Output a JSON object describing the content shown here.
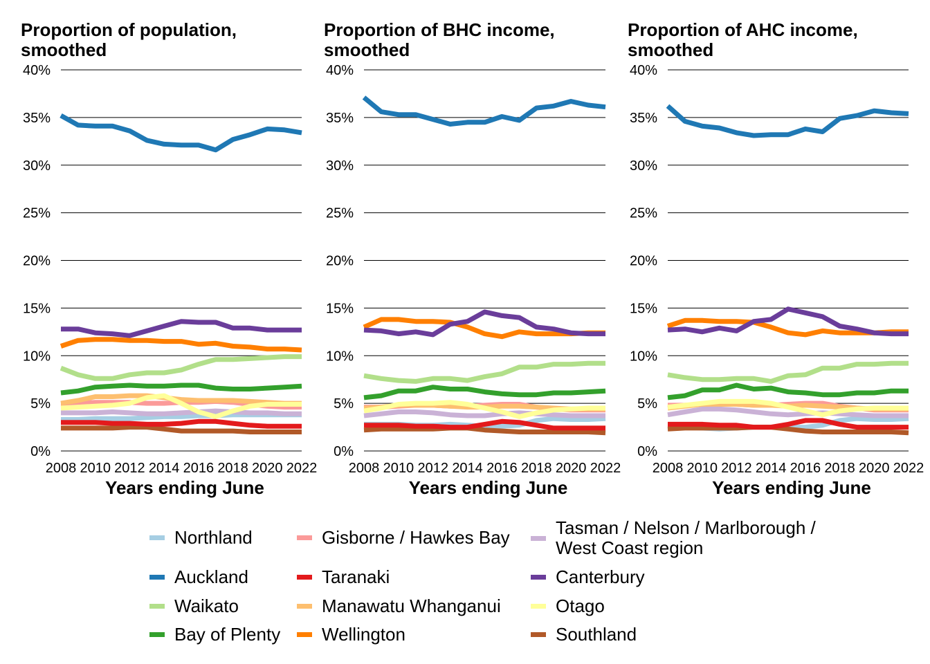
{
  "chart_data": [
    {
      "type": "line",
      "title": "Proportion of population,\nsmoothed",
      "xlabel": "Years ending June",
      "ylabel": "",
      "ylim": [
        0,
        40
      ],
      "y_ticks": [
        "0%",
        "5%",
        "10%",
        "15%",
        "20%",
        "25%",
        "30%",
        "35%",
        "40%"
      ],
      "x_ticks": [
        "2008",
        "2010",
        "2012",
        "2014",
        "2016",
        "2018",
        "2020",
        "2022"
      ],
      "x": [
        2008,
        2009,
        2010,
        2011,
        2012,
        2013,
        2014,
        2015,
        2016,
        2017,
        2018,
        2019,
        2020,
        2021,
        2022
      ],
      "series": [
        {
          "name": "Northland",
          "values": [
            3.3,
            3.3,
            3.4,
            3.4,
            3.4,
            3.5,
            3.6,
            3.6,
            3.7,
            3.7,
            3.8,
            3.8,
            3.8,
            3.8,
            3.8
          ]
        },
        {
          "name": "Auckland",
          "values": [
            35.2,
            34.2,
            34.1,
            34.1,
            33.6,
            32.6,
            32.2,
            32.1,
            32.1,
            31.6,
            32.7,
            33.2,
            33.8,
            33.7,
            33.4
          ]
        },
        {
          "name": "Waikato",
          "values": [
            8.7,
            8.0,
            7.6,
            7.6,
            8.0,
            8.2,
            8.2,
            8.5,
            9.1,
            9.6,
            9.6,
            9.7,
            9.8,
            9.9,
            9.9
          ]
        },
        {
          "name": "Bay of Plenty",
          "values": [
            6.1,
            6.3,
            6.7,
            6.8,
            6.9,
            6.8,
            6.8,
            6.9,
            6.9,
            6.6,
            6.5,
            6.5,
            6.6,
            6.7,
            6.8
          ]
        },
        {
          "name": "Gisborne / Hawkes Bay",
          "values": [
            5.0,
            5.0,
            5.1,
            5.1,
            5.1,
            5.0,
            5.0,
            5.1,
            5.1,
            5.2,
            5.1,
            4.9,
            4.7,
            4.6,
            4.6
          ]
        },
        {
          "name": "Taranaki",
          "values": [
            3.0,
            3.0,
            3.0,
            2.9,
            2.9,
            2.8,
            2.8,
            2.9,
            3.1,
            3.1,
            2.9,
            2.7,
            2.6,
            2.6,
            2.6
          ]
        },
        {
          "name": "Manawatu Whanganui",
          "values": [
            5.0,
            5.3,
            5.7,
            5.7,
            5.8,
            5.8,
            5.6,
            5.4,
            5.3,
            5.3,
            5.3,
            5.2,
            5.1,
            5.0,
            5.0
          ]
        },
        {
          "name": "Wellington",
          "values": [
            11.0,
            11.6,
            11.7,
            11.7,
            11.6,
            11.6,
            11.5,
            11.5,
            11.2,
            11.3,
            11.0,
            10.9,
            10.7,
            10.7,
            10.6
          ]
        },
        {
          "name": "Tasman / Nelson / Marlborough /\nWest Coast region",
          "values": [
            4.0,
            4.0,
            4.0,
            4.1,
            4.0,
            3.9,
            3.9,
            4.0,
            4.1,
            4.2,
            4.1,
            4.0,
            4.0,
            3.9,
            3.9
          ]
        },
        {
          "name": "Canterbury",
          "values": [
            12.8,
            12.8,
            12.4,
            12.3,
            12.1,
            12.6,
            13.1,
            13.6,
            13.5,
            13.5,
            12.9,
            12.9,
            12.7,
            12.7,
            12.7
          ]
        },
        {
          "name": "Otago",
          "values": [
            4.5,
            4.6,
            4.7,
            4.8,
            5.0,
            5.6,
            5.8,
            5.0,
            4.1,
            3.6,
            4.2,
            4.7,
            4.9,
            4.9,
            4.9
          ]
        },
        {
          "name": "Southland",
          "values": [
            2.4,
            2.4,
            2.4,
            2.4,
            2.5,
            2.5,
            2.3,
            2.1,
            2.1,
            2.1,
            2.1,
            2.0,
            2.0,
            2.0,
            2.0
          ]
        }
      ]
    },
    {
      "type": "line",
      "title": "Proportion of BHC income,\nsmoothed",
      "xlabel": "Years ending June",
      "ylabel": "",
      "ylim": [
        0,
        40
      ],
      "y_ticks": [
        "0%",
        "5%",
        "10%",
        "15%",
        "20%",
        "25%",
        "30%",
        "35%",
        "40%"
      ],
      "x_ticks": [
        "2008",
        "2010",
        "2012",
        "2014",
        "2016",
        "2018",
        "2020",
        "2022"
      ],
      "x": [
        2008,
        2009,
        2010,
        2011,
        2012,
        2013,
        2014,
        2015,
        2016,
        2017,
        2018,
        2019,
        2020,
        2021,
        2022
      ],
      "series": [
        {
          "name": "Northland",
          "values": [
            2.8,
            2.8,
            2.8,
            2.7,
            2.7,
            2.8,
            2.7,
            2.6,
            2.6,
            2.7,
            3.2,
            3.4,
            3.3,
            3.3,
            3.4
          ]
        },
        {
          "name": "Auckland",
          "values": [
            37.1,
            35.6,
            35.3,
            35.3,
            34.8,
            34.3,
            34.5,
            34.5,
            35.1,
            34.7,
            36.0,
            36.2,
            36.7,
            36.3,
            36.1
          ]
        },
        {
          "name": "Waikato",
          "values": [
            7.9,
            7.6,
            7.4,
            7.3,
            7.6,
            7.6,
            7.4,
            7.8,
            8.1,
            8.8,
            8.8,
            9.1,
            9.1,
            9.2,
            9.2
          ]
        },
        {
          "name": "Bay of Plenty",
          "values": [
            5.6,
            5.8,
            6.3,
            6.3,
            6.7,
            6.5,
            6.5,
            6.2,
            6.0,
            5.9,
            5.9,
            6.1,
            6.1,
            6.2,
            6.3
          ]
        },
        {
          "name": "Gisborne / Hawkes Bay",
          "values": [
            4.6,
            4.6,
            4.7,
            4.8,
            4.8,
            4.7,
            4.7,
            4.8,
            4.9,
            4.9,
            4.6,
            4.4,
            4.3,
            4.3,
            4.3
          ]
        },
        {
          "name": "Taranaki",
          "values": [
            2.7,
            2.7,
            2.7,
            2.6,
            2.6,
            2.5,
            2.5,
            2.8,
            3.1,
            3.0,
            2.7,
            2.4,
            2.4,
            2.4,
            2.4
          ]
        },
        {
          "name": "Manawatu Whanganui",
          "values": [
            4.5,
            4.6,
            4.8,
            4.8,
            4.8,
            4.7,
            4.6,
            4.6,
            4.7,
            4.7,
            4.6,
            4.5,
            4.4,
            4.4,
            4.4
          ]
        },
        {
          "name": "Wellington",
          "values": [
            13.0,
            13.8,
            13.8,
            13.6,
            13.6,
            13.5,
            13.0,
            12.3,
            12.0,
            12.5,
            12.3,
            12.3,
            12.3,
            12.4,
            12.4
          ]
        },
        {
          "name": "Tasman / Nelson / Marlborough /\nWest Coast region",
          "values": [
            3.7,
            3.9,
            4.1,
            4.1,
            4.0,
            3.8,
            3.7,
            3.7,
            3.9,
            4.0,
            3.9,
            3.8,
            3.7,
            3.7,
            3.7
          ]
        },
        {
          "name": "Canterbury",
          "values": [
            12.7,
            12.6,
            12.3,
            12.5,
            12.2,
            13.3,
            13.6,
            14.6,
            14.2,
            14.0,
            13.0,
            12.8,
            12.4,
            12.3,
            12.3
          ]
        },
        {
          "name": "Otago",
          "values": [
            4.2,
            4.5,
            4.9,
            5.0,
            5.0,
            5.1,
            4.9,
            4.5,
            4.1,
            3.6,
            4.0,
            4.3,
            4.4,
            4.5,
            4.5
          ]
        },
        {
          "name": "Southland",
          "values": [
            2.2,
            2.3,
            2.3,
            2.3,
            2.3,
            2.4,
            2.4,
            2.2,
            2.1,
            2.0,
            2.0,
            2.0,
            2.0,
            2.0,
            1.9
          ]
        }
      ]
    },
    {
      "type": "line",
      "title": "Proportion of AHC income,\nsmoothed",
      "xlabel": "Years ending June",
      "ylabel": "",
      "ylim": [
        0,
        40
      ],
      "y_ticks": [
        "0%",
        "5%",
        "10%",
        "15%",
        "20%",
        "25%",
        "30%",
        "35%",
        "40%"
      ],
      "x_ticks": [
        "2008",
        "2010",
        "2012",
        "2014",
        "2016",
        "2018",
        "2020",
        "2022"
      ],
      "x": [
        2008,
        2009,
        2010,
        2011,
        2012,
        2013,
        2014,
        2015,
        2016,
        2017,
        2018,
        2019,
        2020,
        2021,
        2022
      ],
      "series": [
        {
          "name": "Northland",
          "values": [
            2.6,
            2.5,
            2.4,
            2.3,
            2.4,
            2.5,
            2.5,
            2.5,
            2.5,
            2.7,
            3.2,
            3.4,
            3.3,
            3.3,
            3.4
          ]
        },
        {
          "name": "Auckland",
          "values": [
            36.2,
            34.6,
            34.1,
            33.9,
            33.4,
            33.1,
            33.2,
            33.2,
            33.8,
            33.5,
            34.9,
            35.2,
            35.7,
            35.5,
            35.4
          ]
        },
        {
          "name": "Waikato",
          "values": [
            8.0,
            7.7,
            7.5,
            7.5,
            7.6,
            7.6,
            7.3,
            7.9,
            8.0,
            8.7,
            8.7,
            9.1,
            9.1,
            9.2,
            9.2
          ]
        },
        {
          "name": "Bay of Plenty",
          "values": [
            5.6,
            5.8,
            6.4,
            6.4,
            6.9,
            6.5,
            6.6,
            6.2,
            6.1,
            5.9,
            5.9,
            6.1,
            6.1,
            6.3,
            6.3
          ]
        },
        {
          "name": "Gisborne / Hawkes Bay",
          "values": [
            4.8,
            4.8,
            4.9,
            4.9,
            4.9,
            4.8,
            4.8,
            4.9,
            5.0,
            5.0,
            4.7,
            4.5,
            4.3,
            4.3,
            4.3
          ]
        },
        {
          "name": "Taranaki",
          "values": [
            2.8,
            2.8,
            2.8,
            2.7,
            2.7,
            2.5,
            2.5,
            2.8,
            3.2,
            3.2,
            2.8,
            2.5,
            2.5,
            2.5,
            2.5
          ]
        },
        {
          "name": "Manawatu Whanganui",
          "values": [
            4.5,
            4.7,
            4.9,
            4.9,
            4.9,
            4.8,
            4.8,
            4.7,
            4.8,
            4.7,
            4.6,
            4.5,
            4.4,
            4.4,
            4.4
          ]
        },
        {
          "name": "Wellington",
          "values": [
            13.1,
            13.7,
            13.7,
            13.6,
            13.6,
            13.5,
            13.0,
            12.4,
            12.2,
            12.6,
            12.4,
            12.4,
            12.4,
            12.5,
            12.5
          ]
        },
        {
          "name": "Tasman / Nelson / Marlborough /\nWest Coast region",
          "values": [
            3.8,
            4.1,
            4.4,
            4.4,
            4.3,
            4.1,
            3.9,
            3.8,
            3.9,
            4.0,
            3.9,
            3.8,
            3.7,
            3.7,
            3.7
          ]
        },
        {
          "name": "Canterbury",
          "values": [
            12.7,
            12.8,
            12.5,
            12.9,
            12.6,
            13.6,
            13.8,
            14.9,
            14.5,
            14.1,
            13.1,
            12.8,
            12.4,
            12.3,
            12.3
          ]
        },
        {
          "name": "Otago",
          "values": [
            4.6,
            4.8,
            5.0,
            5.2,
            5.2,
            5.2,
            5.0,
            4.6,
            4.2,
            3.8,
            4.2,
            4.4,
            4.5,
            4.5,
            4.5
          ]
        },
        {
          "name": "Southland",
          "values": [
            2.3,
            2.4,
            2.4,
            2.4,
            2.4,
            2.5,
            2.5,
            2.3,
            2.1,
            2.0,
            2.0,
            2.0,
            2.0,
            2.0,
            1.9
          ]
        }
      ]
    }
  ],
  "legend": {
    "items": [
      {
        "label": "Northland",
        "color": "#a6cee3"
      },
      {
        "label": "Auckland",
        "color": "#1f78b4"
      },
      {
        "label": "Waikato",
        "color": "#b2df8a"
      },
      {
        "label": "Bay of Plenty",
        "color": "#33a02c"
      },
      {
        "label": "Gisborne / Hawkes Bay",
        "color": "#fb9a99"
      },
      {
        "label": "Taranaki",
        "color": "#e31a1c"
      },
      {
        "label": "Manawatu Whanganui",
        "color": "#fdbf6f"
      },
      {
        "label": "Wellington",
        "color": "#ff7f00"
      },
      {
        "label": "Tasman / Nelson / Marlborough /\nWest Coast region",
        "color": "#cab2d6"
      },
      {
        "label": "Canterbury",
        "color": "#6a3d9a"
      },
      {
        "label": "Otago",
        "color": "#ffff99"
      },
      {
        "label": "Southland",
        "color": "#b15928"
      }
    ]
  }
}
